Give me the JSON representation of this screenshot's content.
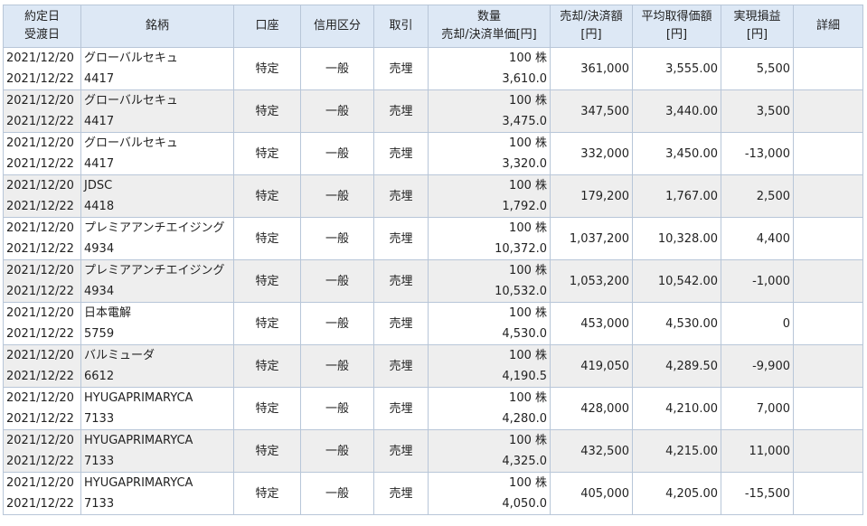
{
  "table": {
    "headers": {
      "date_line1": "約定日",
      "date_line2": "受渡日",
      "name": "銘柄",
      "account": "口座",
      "credit": "信用区分",
      "trade": "取引",
      "qty_line1": "数量",
      "qty_line2": "売却/決済単価[円]",
      "sale_line1": "売却/決済額",
      "sale_line2": "[円]",
      "avg_line1": "平均取得価額",
      "avg_line2": "[円]",
      "pl_line1": "実現損益",
      "pl_line2": "[円]",
      "detail": "詳細"
    },
    "rows": [
      {
        "trade_date": "2021/12/20",
        "settle_date": "2021/12/22",
        "name": "グローバルセキュ",
        "code": "4417",
        "account": "特定",
        "credit": "一般",
        "trade": "売埋",
        "quantity": "100 株",
        "unit_price": "3,610.0",
        "amount": "361,000",
        "avg_cost": "3,555.00",
        "pl": "5,500"
      },
      {
        "trade_date": "2021/12/20",
        "settle_date": "2021/12/22",
        "name": "グローバルセキュ",
        "code": "4417",
        "account": "特定",
        "credit": "一般",
        "trade": "売埋",
        "quantity": "100 株",
        "unit_price": "3,475.0",
        "amount": "347,500",
        "avg_cost": "3,440.00",
        "pl": "3,500"
      },
      {
        "trade_date": "2021/12/20",
        "settle_date": "2021/12/22",
        "name": "グローバルセキュ",
        "code": "4417",
        "account": "特定",
        "credit": "一般",
        "trade": "売埋",
        "quantity": "100 株",
        "unit_price": "3,320.0",
        "amount": "332,000",
        "avg_cost": "3,450.00",
        "pl": "-13,000"
      },
      {
        "trade_date": "2021/12/20",
        "settle_date": "2021/12/22",
        "name": "JDSC",
        "code": "4418",
        "account": "特定",
        "credit": "一般",
        "trade": "売埋",
        "quantity": "100 株",
        "unit_price": "1,792.0",
        "amount": "179,200",
        "avg_cost": "1,767.00",
        "pl": "2,500"
      },
      {
        "trade_date": "2021/12/20",
        "settle_date": "2021/12/22",
        "name": "プレミアアンチエイジング",
        "code": "4934",
        "account": "特定",
        "credit": "一般",
        "trade": "売埋",
        "quantity": "100 株",
        "unit_price": "10,372.0",
        "amount": "1,037,200",
        "avg_cost": "10,328.00",
        "pl": "4,400"
      },
      {
        "trade_date": "2021/12/20",
        "settle_date": "2021/12/22",
        "name": "プレミアアンチエイジング",
        "code": "4934",
        "account": "特定",
        "credit": "一般",
        "trade": "売埋",
        "quantity": "100 株",
        "unit_price": "10,532.0",
        "amount": "1,053,200",
        "avg_cost": "10,542.00",
        "pl": "-1,000"
      },
      {
        "trade_date": "2021/12/20",
        "settle_date": "2021/12/22",
        "name": "日本電解",
        "code": "5759",
        "account": "特定",
        "credit": "一般",
        "trade": "売埋",
        "quantity": "100 株",
        "unit_price": "4,530.0",
        "amount": "453,000",
        "avg_cost": "4,530.00",
        "pl": "0"
      },
      {
        "trade_date": "2021/12/20",
        "settle_date": "2021/12/22",
        "name": "バルミューダ",
        "code": "6612",
        "account": "特定",
        "credit": "一般",
        "trade": "売埋",
        "quantity": "100 株",
        "unit_price": "4,190.5",
        "amount": "419,050",
        "avg_cost": "4,289.50",
        "pl": "-9,900"
      },
      {
        "trade_date": "2021/12/20",
        "settle_date": "2021/12/22",
        "name": "HYUGAPRIMARYCA",
        "code": "7133",
        "account": "特定",
        "credit": "一般",
        "trade": "売埋",
        "quantity": "100 株",
        "unit_price": "4,280.0",
        "amount": "428,000",
        "avg_cost": "4,210.00",
        "pl": "7,000"
      },
      {
        "trade_date": "2021/12/20",
        "settle_date": "2021/12/22",
        "name": "HYUGAPRIMARYCA",
        "code": "7133",
        "account": "特定",
        "credit": "一般",
        "trade": "売埋",
        "quantity": "100 株",
        "unit_price": "4,325.0",
        "amount": "432,500",
        "avg_cost": "4,215.00",
        "pl": "11,000"
      },
      {
        "trade_date": "2021/12/20",
        "settle_date": "2021/12/22",
        "name": "HYUGAPRIMARYCA",
        "code": "7133",
        "account": "特定",
        "credit": "一般",
        "trade": "売埋",
        "quantity": "100 株",
        "unit_price": "4,050.0",
        "amount": "405,000",
        "avg_cost": "4,205.00",
        "pl": "-15,500"
      }
    ]
  }
}
